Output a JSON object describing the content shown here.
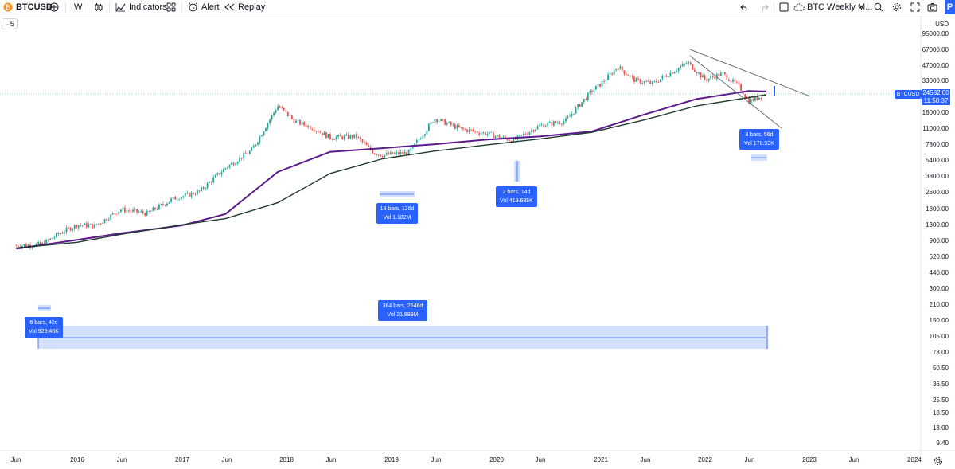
{
  "toolbar": {
    "symbol": "BTCUSD",
    "interval": "W",
    "indicators_label": "Indicators",
    "alert_label": "Alert",
    "replay_label": "Replay",
    "layout_name": "BTC Weekly M...",
    "publish_label": "P"
  },
  "legend": {
    "collapse_count": "5"
  },
  "price_axis": {
    "currency": "USD",
    "labels": [
      "95000.00",
      "67000.00",
      "47000.00",
      "33000.00",
      "23000.00",
      "16000.00",
      "11000.00",
      "7800.00",
      "5400.00",
      "3800.00",
      "2600.00",
      "1800.00",
      "1300.00",
      "900.00",
      "620.00",
      "440.00",
      "300.00",
      "210.00",
      "150.00",
      "105.00",
      "73.00",
      "50.50",
      "36.50",
      "25.50",
      "18.50",
      "13.00",
      "9.40"
    ],
    "current_symbol": "BTCUSD",
    "current_price": "24582.00",
    "countdown": "11:50:37"
  },
  "time_axis": {
    "labels": [
      "Jun",
      "2016",
      "Jun",
      "2017",
      "Jun",
      "2018",
      "Jun",
      "2019",
      "Jun",
      "2020",
      "Jun",
      "2021",
      "Jun",
      "2022",
      "Jun",
      "2023",
      "Jun",
      "2024"
    ]
  },
  "measurements": [
    {
      "bars": "6 bars, 42d",
      "vol": "Vol 929.46K"
    },
    {
      "bars": "18 bars, 126d",
      "vol": "Vol 1.182M"
    },
    {
      "bars": "2 bars, 14d",
      "vol": "Vol 419.685K"
    },
    {
      "bars": "8 bars, 56d",
      "vol": "Vol 178.92K"
    },
    {
      "bars": "364 bars, 2548d",
      "vol": "Vol 21.889M"
    }
  ],
  "colors": {
    "up": "#26a69a",
    "down": "#ef5350",
    "ma_purple": "#5b1b8c",
    "ma_dark": "#1e3a2a",
    "measure": "#2962ff",
    "trendline": "#6a6d78"
  },
  "chart_data": {
    "type": "line",
    "title": "",
    "scale": "log",
    "price_unit": "USD",
    "x_range": [
      "2015-06",
      "2024-02"
    ],
    "y_range": [
      9.4,
      95000
    ],
    "series": [
      {
        "dates": [
          "2015-06",
          "2015-09",
          "2015-11",
          "2016-01",
          "2016-03",
          "2016-06",
          "2016-09",
          "2016-12",
          "2017-03",
          "2017-06",
          "2017-09",
          "2017-12",
          "2018-02",
          "2018-04",
          "2018-06",
          "2018-09",
          "2018-11",
          "2018-12",
          "2019-03",
          "2019-06",
          "2019-09",
          "2019-12",
          "2020-03",
          "2020-06",
          "2020-09",
          "2020-12",
          "2021-01",
          "2021-03",
          "2021-05",
          "2021-07",
          "2021-09",
          "2021-11",
          "2022-01",
          "2022-03",
          "2022-05",
          "2022-06",
          "2022-08"
        ],
        "values": [
          225,
          235,
          330,
          430,
          415,
          690,
          610,
          960,
          1200,
          2500,
          4300,
          17000,
          10500,
          8600,
          6400,
          6600,
          4000,
          3700,
          4000,
          11500,
          8300,
          7200,
          5800,
          9200,
          10700,
          27000,
          33000,
          57000,
          37000,
          34000,
          47000,
          65000,
          38000,
          46000,
          30000,
          19500,
          24582
        ]
      },
      {
        "dates": [
          "2015-06",
          "2016-01",
          "2016-06",
          "2017-01",
          "2017-06",
          "2017-12",
          "2018-06",
          "2018-12",
          "2019-06",
          "2019-12",
          "2020-06",
          "2020-12",
          "2021-06",
          "2021-12",
          "2022-06",
          "2022-08"
        ],
        "values": [
          205,
          270,
          330,
          420,
          600,
          2200,
          4100,
          4600,
          5200,
          6000,
          6600,
          7700,
          13000,
          21000,
          27000,
          26500
        ]
      },
      {
        "dates": [
          "2015-06",
          "2016-01",
          "2016-06",
          "2017-01",
          "2017-06",
          "2017-12",
          "2018-06",
          "2018-12",
          "2019-06",
          "2019-12",
          "2020-06",
          "2020-12",
          "2021-06",
          "2021-12",
          "2022-06",
          "2022-08"
        ],
        "values": [
          210,
          250,
          320,
          430,
          520,
          850,
          2100,
          3300,
          4200,
          5100,
          6100,
          7500,
          11000,
          17000,
          22000,
          24000
        ]
      }
    ]
  }
}
